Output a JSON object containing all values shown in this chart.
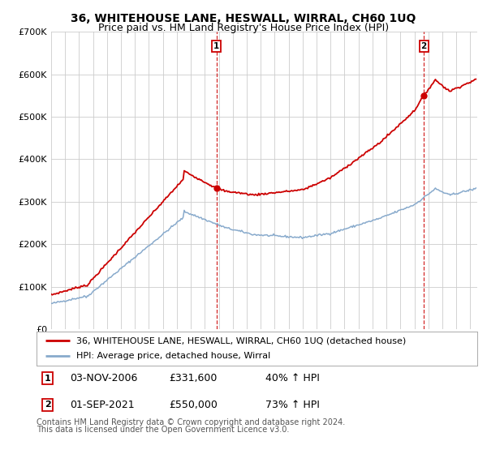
{
  "title": "36, WHITEHOUSE LANE, HESWALL, WIRRAL, CH60 1UQ",
  "subtitle": "Price paid vs. HM Land Registry's House Price Index (HPI)",
  "ylim": [
    0,
    700000
  ],
  "xlim_start": 1995.0,
  "xlim_end": 2025.5,
  "sale1_date": 2006.84,
  "sale1_price": 331600,
  "sale1_label": "1",
  "sale1_date_str": "03-NOV-2006",
  "sale1_price_str": "£331,600",
  "sale1_hpi_str": "40% ↑ HPI",
  "sale2_date": 2021.67,
  "sale2_price": 550000,
  "sale2_label": "2",
  "sale2_date_str": "01-SEP-2021",
  "sale2_price_str": "£550,000",
  "sale2_hpi_str": "73% ↑ HPI",
  "legend_house": "36, WHITEHOUSE LANE, HESWALL, WIRRAL, CH60 1UQ (detached house)",
  "legend_hpi": "HPI: Average price, detached house, Wirral",
  "footnote1": "Contains HM Land Registry data © Crown copyright and database right 2024.",
  "footnote2": "This data is licensed under the Open Government Licence v3.0.",
  "house_color": "#cc0000",
  "hpi_color": "#88aacc",
  "background_color": "#ffffff",
  "grid_color": "#cccccc",
  "title_fontsize": 10,
  "subtitle_fontsize": 9,
  "tick_fontsize": 8,
  "legend_fontsize": 8,
  "table_fontsize": 9,
  "footnote_fontsize": 7
}
